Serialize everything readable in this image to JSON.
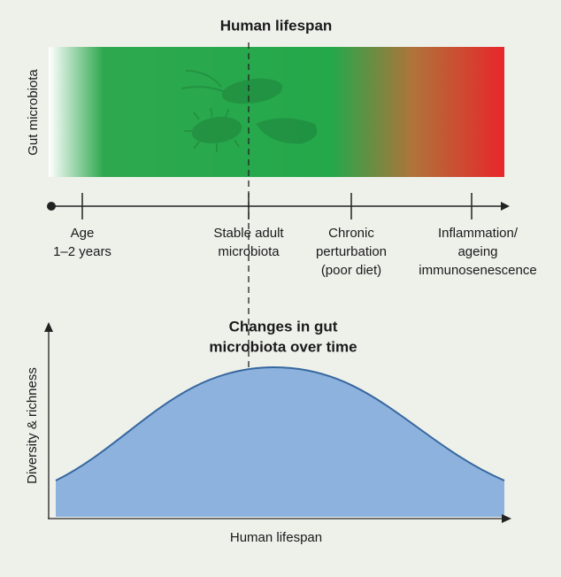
{
  "top_panel": {
    "title": "Human lifespan",
    "y_label": "Gut microbiota",
    "milestones": [
      {
        "lines": [
          "Age",
          "1–2 years"
        ]
      },
      {
        "lines": [
          "Stable adult",
          "microbiota"
        ]
      },
      {
        "lines": [
          "Chronic",
          "perturbation",
          "(poor diet)"
        ]
      },
      {
        "lines": [
          "Inflammation/",
          "ageing",
          "immunosenescence"
        ]
      }
    ]
  },
  "bottom_panel": {
    "title_lines": [
      "Changes in gut",
      "microbiota over time"
    ],
    "y_label": "Diversity & richness",
    "x_label": "Human lifespan"
  }
}
